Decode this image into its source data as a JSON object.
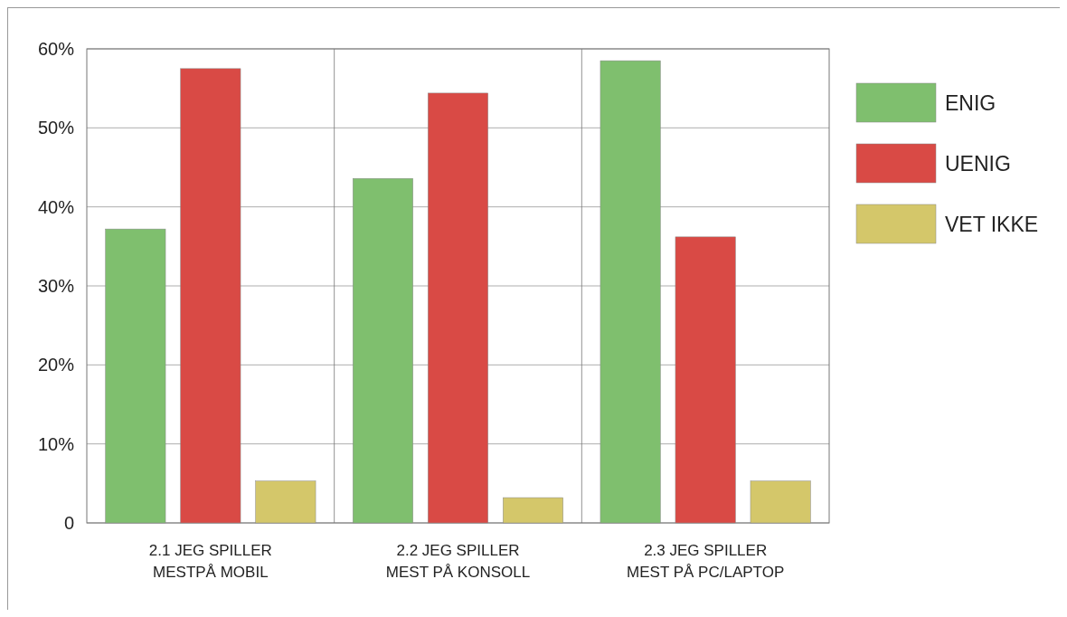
{
  "chart_data": {
    "type": "bar",
    "categories": [
      "2.1 JEG SPILLER MESTPÅ MOBIL",
      "2.2 JEG SPILLER MEST PÅ KONSOLL",
      "2.3 JEG SPILLER MEST PÅ PC/LAPTOP"
    ],
    "series": [
      {
        "name": "ENIG",
        "color": "#7fbf6e",
        "values": [
          37.2,
          43.6,
          58.5
        ]
      },
      {
        "name": "UENIG",
        "color": "#d94a45",
        "values": [
          57.5,
          54.4,
          36.2
        ]
      },
      {
        "name": "VET IKKE",
        "color": "#d4c76a",
        "values": [
          5.3,
          3.2,
          5.3
        ]
      }
    ],
    "ylim": [
      0,
      60
    ],
    "yticks": [
      {
        "value": 0,
        "label": "0"
      },
      {
        "value": 10,
        "label": "10%"
      },
      {
        "value": 20,
        "label": "20%"
      },
      {
        "value": 30,
        "label": "30%"
      },
      {
        "value": 40,
        "label": "40%"
      },
      {
        "value": 50,
        "label": "50%"
      },
      {
        "value": 60,
        "label": "60%"
      }
    ],
    "grid": true,
    "legend": "right"
  }
}
